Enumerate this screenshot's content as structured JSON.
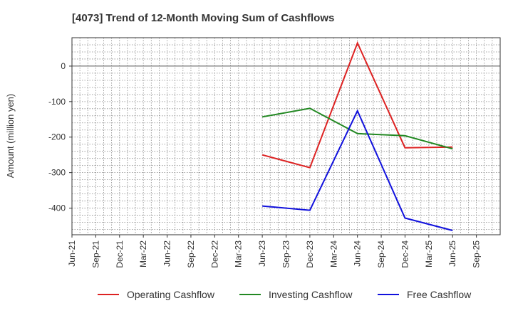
{
  "chart_data": {
    "type": "line",
    "title": "[4073]  Trend of 12-Month Moving Sum of Cashflows",
    "ylabel": "Amount (million yen)",
    "xlabel": "",
    "x_ticks": [
      "Jun-21",
      "Sep-21",
      "Dec-21",
      "Mar-22",
      "Jun-22",
      "Sep-22",
      "Dec-22",
      "Mar-23",
      "Jun-23",
      "Sep-23",
      "Dec-23",
      "Mar-24",
      "Jun-24",
      "Sep-24",
      "Dec-24",
      "Mar-25",
      "Jun-25",
      "Sep-25"
    ],
    "y_ticks": [
      0,
      -100,
      -200,
      -300,
      -400
    ],
    "y_tick_labels": [
      "0",
      "-100",
      "-200",
      "-300",
      "-400"
    ],
    "ylim": [
      -475,
      80
    ],
    "grid": true,
    "legend_position": "bottom",
    "series": [
      {
        "name": "Operating Cashflow",
        "color": "#dd2222",
        "x": [
          "Jun-23",
          "Dec-23",
          "Jun-24",
          "Dec-24",
          "Jun-25"
        ],
        "values": [
          -250,
          -286,
          65,
          -230,
          -228
        ]
      },
      {
        "name": "Investing Cashflow",
        "color": "#228822",
        "x": [
          "Jun-23",
          "Dec-23",
          "Jun-24",
          "Dec-24",
          "Jun-25"
        ],
        "values": [
          -143,
          -119,
          -190,
          -196,
          -233
        ]
      },
      {
        "name": "Free Cashflow",
        "color": "#1111dd",
        "x": [
          "Jun-23",
          "Dec-23",
          "Jun-24",
          "Dec-24",
          "Jun-25"
        ],
        "values": [
          -394,
          -406,
          -126,
          -428,
          -463
        ]
      }
    ]
  }
}
